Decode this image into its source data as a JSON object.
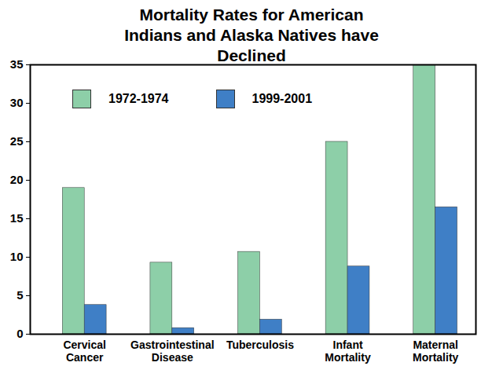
{
  "chart_data": {
    "type": "bar",
    "title": "Mortality Rates for American Indians and Alaska Natives have Declined",
    "categories": [
      "Cervical Cancer",
      "Gastrointestinal Disease",
      "Tuberculosis",
      "Infant Mortality",
      "Maternal Mortality"
    ],
    "series": [
      {
        "name": "1972-1974",
        "color": "#8dcfa8",
        "values": [
          19,
          9.3,
          10.7,
          25,
          35
        ]
      },
      {
        "name": "1999-2001",
        "color": "#3f7fc6",
        "values": [
          3.8,
          0.8,
          1.9,
          8.8,
          16.5
        ]
      }
    ],
    "ylim": [
      0,
      35
    ],
    "yticks": [
      0,
      5,
      10,
      15,
      20,
      25,
      30,
      35
    ],
    "legend": "top-left",
    "grid": false
  }
}
